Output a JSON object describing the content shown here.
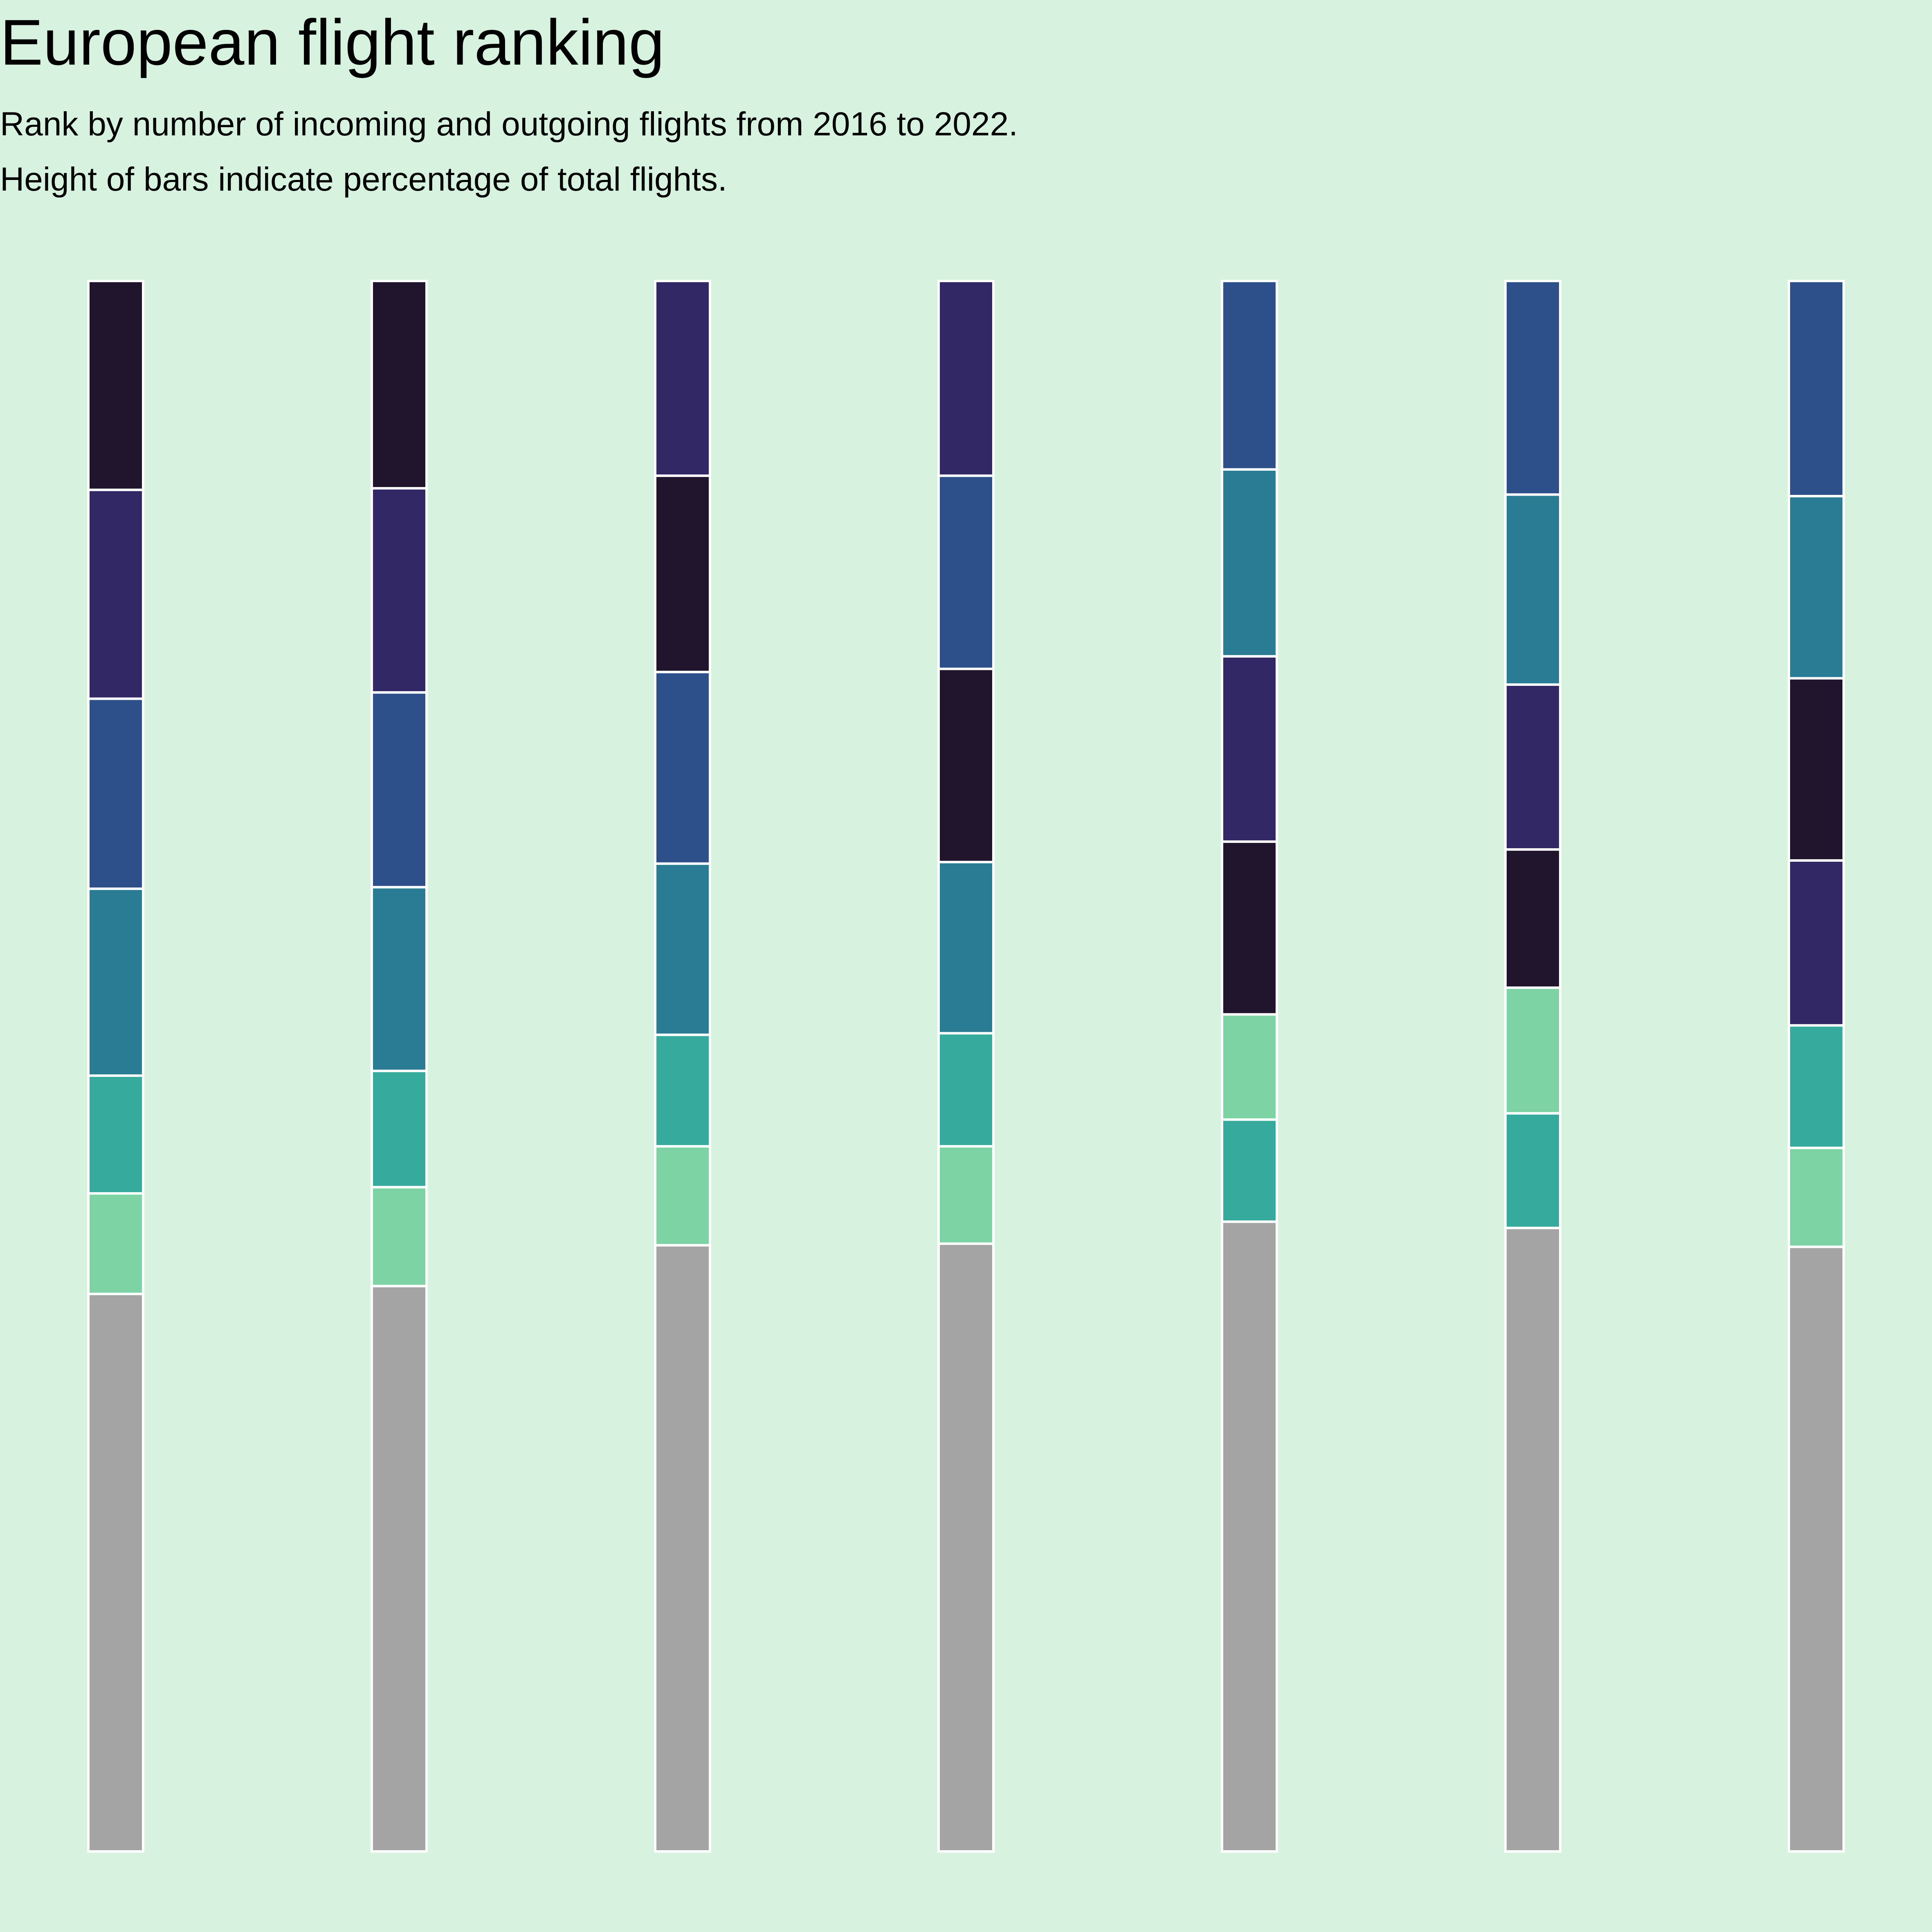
{
  "chart_data": {
    "type": "bar",
    "stacked": true,
    "normalized": true,
    "title": "European flight ranking",
    "subtitle": [
      "Rank by number of incoming and outgoing flights from 2016 to 2022.",
      "Height of bars indicate percentage of total flights."
    ],
    "xlabel": "",
    "ylabel": "",
    "ylim": [
      0,
      100
    ],
    "axes_visible": false,
    "grid": false,
    "legend": "none",
    "background_color": "#d7f3e0",
    "bar_edge_color": "#ffffff",
    "stack_order_note": "segments listed bottom to top",
    "bars": [
      {
        "segments": [
          {
            "value": 35.5,
            "color": "#a4a4a4"
          },
          {
            "value": 6.4,
            "color": "#7dd3a4"
          },
          {
            "value": 7.5,
            "color": "#37aa9e"
          },
          {
            "value": 11.9,
            "color": "#2a7c94"
          },
          {
            "value": 12.1,
            "color": "#2d508a"
          },
          {
            "value": 13.3,
            "color": "#322865"
          },
          {
            "value": 13.3,
            "color": "#21142d"
          }
        ]
      },
      {
        "segments": [
          {
            "value": 36.0,
            "color": "#a4a4a4"
          },
          {
            "value": 6.3,
            "color": "#7dd3a4"
          },
          {
            "value": 7.4,
            "color": "#37aa9e"
          },
          {
            "value": 11.7,
            "color": "#2a7c94"
          },
          {
            "value": 12.4,
            "color": "#2d508a"
          },
          {
            "value": 13.0,
            "color": "#322865"
          },
          {
            "value": 13.2,
            "color": "#21142d"
          }
        ]
      },
      {
        "segments": [
          {
            "value": 38.6,
            "color": "#a4a4a4"
          },
          {
            "value": 6.3,
            "color": "#7dd3a4"
          },
          {
            "value": 7.1,
            "color": "#37aa9e"
          },
          {
            "value": 10.9,
            "color": "#2a7c94"
          },
          {
            "value": 12.2,
            "color": "#2d508a"
          },
          {
            "value": 12.5,
            "color": "#21142d"
          },
          {
            "value": 12.4,
            "color": "#322865"
          }
        ]
      },
      {
        "segments": [
          {
            "value": 38.7,
            "color": "#a4a4a4"
          },
          {
            "value": 6.2,
            "color": "#7dd3a4"
          },
          {
            "value": 7.2,
            "color": "#37aa9e"
          },
          {
            "value": 10.9,
            "color": "#2a7c94"
          },
          {
            "value": 12.3,
            "color": "#21142d"
          },
          {
            "value": 12.3,
            "color": "#2d508a"
          },
          {
            "value": 12.4,
            "color": "#322865"
          }
        ]
      },
      {
        "segments": [
          {
            "value": 40.1,
            "color": "#a4a4a4"
          },
          {
            "value": 6.5,
            "color": "#37aa9e"
          },
          {
            "value": 6.7,
            "color": "#7dd3a4"
          },
          {
            "value": 11.0,
            "color": "#21142d"
          },
          {
            "value": 11.8,
            "color": "#322865"
          },
          {
            "value": 11.9,
            "color": "#2a7c94"
          },
          {
            "value": 12.0,
            "color": "#2d508a"
          }
        ]
      },
      {
        "segments": [
          {
            "value": 39.7,
            "color": "#a4a4a4"
          },
          {
            "value": 7.3,
            "color": "#37aa9e"
          },
          {
            "value": 8.0,
            "color": "#7dd3a4"
          },
          {
            "value": 8.8,
            "color": "#21142d"
          },
          {
            "value": 10.5,
            "color": "#322865"
          },
          {
            "value": 12.1,
            "color": "#2a7c94"
          },
          {
            "value": 13.6,
            "color": "#2d508a"
          }
        ]
      },
      {
        "segments": [
          {
            "value": 38.5,
            "color": "#a4a4a4"
          },
          {
            "value": 6.3,
            "color": "#7dd3a4"
          },
          {
            "value": 7.8,
            "color": "#37aa9e"
          },
          {
            "value": 10.5,
            "color": "#322865"
          },
          {
            "value": 11.6,
            "color": "#21142d"
          },
          {
            "value": 11.6,
            "color": "#2a7c94"
          },
          {
            "value": 13.7,
            "color": "#2d508a"
          }
        ]
      }
    ]
  }
}
